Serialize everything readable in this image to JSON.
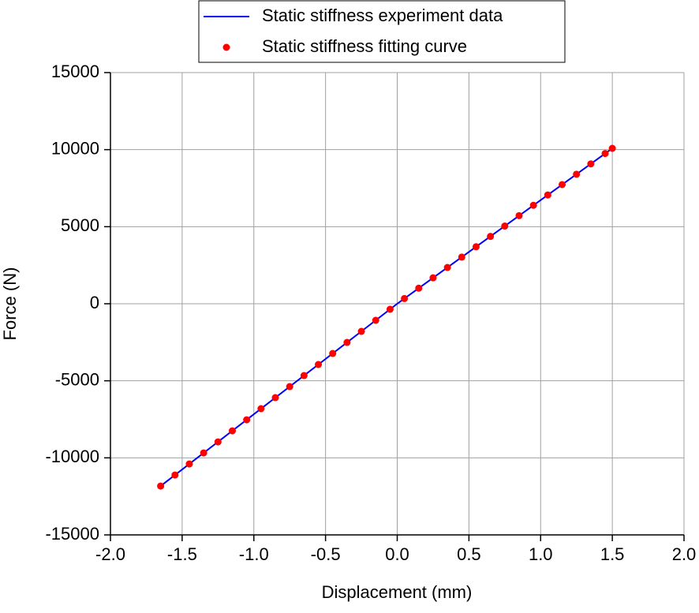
{
  "chart_data": {
    "type": "line",
    "x_label": "Displacement (mm)",
    "y_label": "Force (N)",
    "xlim": [
      -2.0,
      2.0
    ],
    "ylim": [
      -15000,
      15000
    ],
    "xticks": [
      {
        "value": -2.0,
        "label": "-2.0"
      },
      -1.5,
      {
        "value": -1.0,
        "label": "-1.0"
      },
      -0.5,
      {
        "value": 0,
        "label": "0.0"
      },
      0.5,
      {
        "value": 1.0,
        "label": "1.0"
      },
      1.5,
      {
        "value": 2.0,
        "label": "2.0"
      }
    ],
    "yticks": [
      -15000,
      -10000,
      -5000,
      0,
      5000,
      10000,
      15000
    ],
    "grid": true,
    "legend": "top",
    "series": [
      {
        "name": "Static stiffness experiment data",
        "color": "#0000ff",
        "mode": "line",
        "x": [
          -1.65,
          -1.0,
          0,
          1.0,
          1.5
        ],
        "values": [
          -11830,
          -7170,
          0,
          6723,
          10085
        ]
      },
      {
        "name": "Static stiffness fitting curve",
        "color": "#ff0000",
        "mode": "markers",
        "x": [
          -1.65,
          -1.55,
          -1.45,
          -1.35,
          -1.25,
          -1.15,
          -1.05,
          -0.95,
          -0.85,
          -0.75,
          -0.65,
          -0.55,
          -0.45,
          -0.35,
          -0.25,
          -0.15,
          -0.05,
          0.05,
          0.15,
          0.25,
          0.35,
          0.45,
          0.55,
          0.65,
          0.75,
          0.85,
          0.95,
          1.05,
          1.15,
          1.25,
          1.35,
          1.45,
          1.5
        ],
        "values": [
          -11831,
          -11114,
          -10397,
          -9680,
          -8963,
          -8246,
          -7529,
          -6812,
          -6095,
          -5378,
          -4661,
          -3944,
          -3227,
          -2510,
          -1793,
          -1076,
          -359,
          336,
          1008,
          1681,
          2353,
          3025,
          3698,
          4370,
          5042,
          5715,
          6387,
          7059,
          7731,
          8404,
          9076,
          9748,
          10085
        ]
      }
    ]
  }
}
